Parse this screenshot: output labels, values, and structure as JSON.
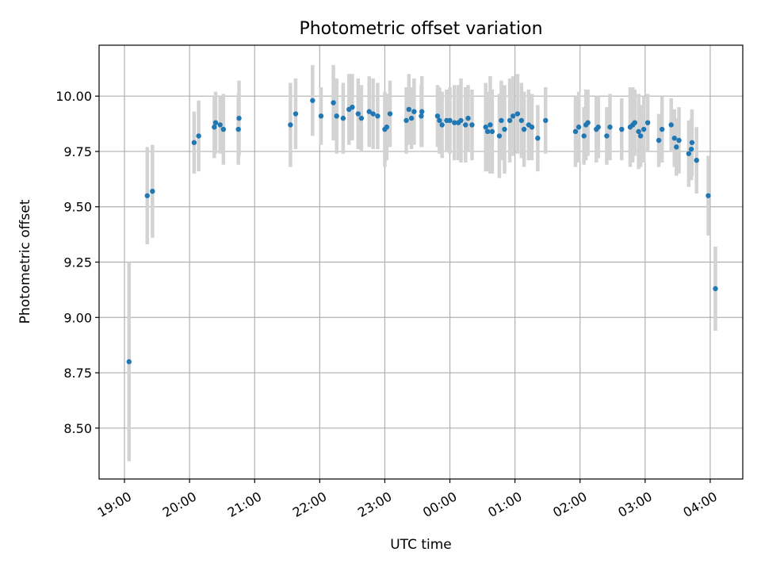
{
  "chart_data": {
    "type": "scatter",
    "title": "Photometric offset variation",
    "xlabel": "UTC time",
    "ylabel": "Photometric offset",
    "x_unit": "hours since 19:00 UTC",
    "xlim": [
      -0.39,
      9.5
    ],
    "ylim": [
      8.27,
      10.23
    ],
    "grid": true,
    "point_color": "#1f77b4",
    "errorbar_color": "#d3d3d3",
    "xticks": [
      {
        "v": 0,
        "label": "19:00"
      },
      {
        "v": 1,
        "label": "20:00"
      },
      {
        "v": 2,
        "label": "21:00"
      },
      {
        "v": 3,
        "label": "22:00"
      },
      {
        "v": 4,
        "label": "23:00"
      },
      {
        "v": 5,
        "label": "00:00"
      },
      {
        "v": 6,
        "label": "01:00"
      },
      {
        "v": 7,
        "label": "02:00"
      },
      {
        "v": 8,
        "label": "03:00"
      },
      {
        "v": 9,
        "label": "04:00"
      }
    ],
    "yticks": [
      {
        "v": 8.5,
        "label": "8.50"
      },
      {
        "v": 8.75,
        "label": "8.75"
      },
      {
        "v": 9.0,
        "label": "9.00"
      },
      {
        "v": 9.25,
        "label": "9.25"
      },
      {
        "v": 9.5,
        "label": "9.50"
      },
      {
        "v": 9.75,
        "label": "9.75"
      },
      {
        "v": 10.0,
        "label": "10.00"
      }
    ],
    "points": [
      [
        0.07,
        8.8,
        0.45
      ],
      [
        0.35,
        9.55,
        0.22
      ],
      [
        0.43,
        9.57,
        0.21
      ],
      [
        1.07,
        9.79,
        0.14
      ],
      [
        1.14,
        9.82,
        0.16
      ],
      [
        1.38,
        9.86,
        0.14
      ],
      [
        1.4,
        9.88,
        0.14
      ],
      [
        1.47,
        9.87,
        0.13
      ],
      [
        1.52,
        9.85,
        0.16
      ],
      [
        1.75,
        9.85,
        0.16
      ],
      [
        1.76,
        9.9,
        0.17
      ],
      [
        2.55,
        9.87,
        0.19
      ],
      [
        2.63,
        9.92,
        0.16
      ],
      [
        2.89,
        9.98,
        0.16
      ],
      [
        3.02,
        9.91,
        0.13
      ],
      [
        3.21,
        9.97,
        0.17
      ],
      [
        3.26,
        9.91,
        0.17
      ],
      [
        3.36,
        9.9,
        0.16
      ],
      [
        3.45,
        9.94,
        0.16
      ],
      [
        3.5,
        9.95,
        0.15
      ],
      [
        3.59,
        9.92,
        0.16
      ],
      [
        3.64,
        9.9,
        0.15
      ],
      [
        3.76,
        9.93,
        0.16
      ],
      [
        3.82,
        9.92,
        0.16
      ],
      [
        3.89,
        9.91,
        0.15
      ],
      [
        4.0,
        9.85,
        0.17
      ],
      [
        4.03,
        9.86,
        0.15
      ],
      [
        4.08,
        9.92,
        0.15
      ],
      [
        4.33,
        9.89,
        0.15
      ],
      [
        4.37,
        9.94,
        0.16
      ],
      [
        4.41,
        9.9,
        0.14
      ],
      [
        4.45,
        9.93,
        0.15
      ],
      [
        4.56,
        9.91,
        0.14
      ],
      [
        4.57,
        9.93,
        0.16
      ],
      [
        4.81,
        9.91,
        0.14
      ],
      [
        4.84,
        9.89,
        0.15
      ],
      [
        4.88,
        9.87,
        0.15
      ],
      [
        4.95,
        9.89,
        0.14
      ],
      [
        5.0,
        9.89,
        0.15
      ],
      [
        5.07,
        9.88,
        0.17
      ],
      [
        5.13,
        9.88,
        0.17
      ],
      [
        5.17,
        9.89,
        0.19
      ],
      [
        5.24,
        9.87,
        0.17
      ],
      [
        5.28,
        9.9,
        0.15
      ],
      [
        5.34,
        9.87,
        0.16
      ],
      [
        5.55,
        9.86,
        0.2
      ],
      [
        5.58,
        9.84,
        0.18
      ],
      [
        5.62,
        9.87,
        0.22
      ],
      [
        5.65,
        9.84,
        0.19
      ],
      [
        5.76,
        9.82,
        0.19
      ],
      [
        5.79,
        9.89,
        0.18
      ],
      [
        5.84,
        9.85,
        0.2
      ],
      [
        5.92,
        9.89,
        0.19
      ],
      [
        5.97,
        9.91,
        0.18
      ],
      [
        6.04,
        9.92,
        0.18
      ],
      [
        6.1,
        9.89,
        0.17
      ],
      [
        6.14,
        9.85,
        0.17
      ],
      [
        6.21,
        9.87,
        0.16
      ],
      [
        6.26,
        9.86,
        0.15
      ],
      [
        6.35,
        9.81,
        0.15
      ],
      [
        6.47,
        9.89,
        0.15
      ],
      [
        6.93,
        9.84,
        0.16
      ],
      [
        6.98,
        9.86,
        0.16
      ],
      [
        7.06,
        9.82,
        0.13
      ],
      [
        7.09,
        9.87,
        0.16
      ],
      [
        7.12,
        9.88,
        0.15
      ],
      [
        7.25,
        9.85,
        0.15
      ],
      [
        7.28,
        9.86,
        0.14
      ],
      [
        7.41,
        9.82,
        0.13
      ],
      [
        7.46,
        9.86,
        0.15
      ],
      [
        7.64,
        9.85,
        0.14
      ],
      [
        7.77,
        9.86,
        0.18
      ],
      [
        7.81,
        9.87,
        0.17
      ],
      [
        7.84,
        9.88,
        0.15
      ],
      [
        7.9,
        9.84,
        0.17
      ],
      [
        7.93,
        9.82,
        0.14
      ],
      [
        7.98,
        9.85,
        0.15
      ],
      [
        8.04,
        9.88,
        0.13
      ],
      [
        8.21,
        9.8,
        0.12
      ],
      [
        8.26,
        9.85,
        0.15
      ],
      [
        8.4,
        9.87,
        0.12
      ],
      [
        8.45,
        9.81,
        0.13
      ],
      [
        8.48,
        9.77,
        0.13
      ],
      [
        8.52,
        9.8,
        0.15
      ],
      [
        8.67,
        9.74,
        0.15
      ],
      [
        8.71,
        9.76,
        0.14
      ],
      [
        8.72,
        9.79,
        0.15
      ],
      [
        8.79,
        9.71,
        0.15
      ],
      [
        8.97,
        9.55,
        0.18
      ],
      [
        9.08,
        9.13,
        0.19
      ]
    ]
  }
}
